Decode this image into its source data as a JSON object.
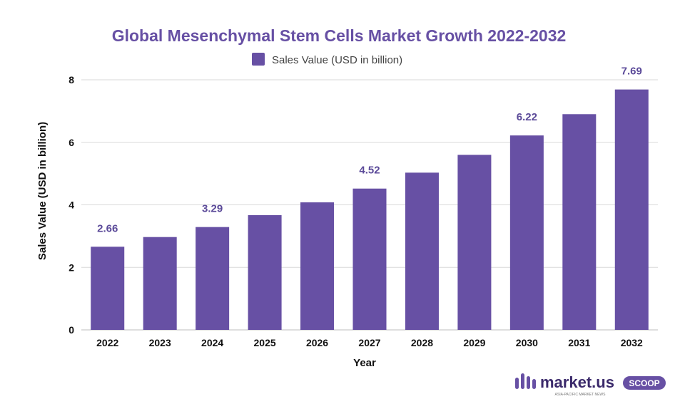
{
  "chart_data": {
    "type": "bar",
    "title": "Global Mesenchymal Stem Cells Market Growth 2022-2032",
    "xlabel": "Year",
    "ylabel": "Sales Value (USD in billion)",
    "categories": [
      "2022",
      "2023",
      "2024",
      "2025",
      "2026",
      "2027",
      "2028",
      "2029",
      "2030",
      "2031",
      "2032"
    ],
    "series": [
      {
        "name": "Sales Value (USD in billion)",
        "values": [
          2.66,
          2.97,
          3.29,
          3.67,
          4.08,
          4.52,
          5.03,
          5.6,
          6.22,
          6.9,
          7.69
        ]
      }
    ],
    "data_labels": [
      {
        "category": "2022",
        "text": "2.66"
      },
      {
        "category": "2024",
        "text": "3.29"
      },
      {
        "category": "2027",
        "text": "4.52"
      },
      {
        "category": "2030",
        "text": "6.22"
      },
      {
        "category": "2032",
        "text": "7.69"
      }
    ],
    "yticks": [
      "0",
      "2",
      "4",
      "6",
      "8"
    ],
    "ylim": [
      0,
      8
    ],
    "legend_position": "top-center",
    "grid": "horizontal",
    "colors": {
      "bar": "#6750a4",
      "title": "#6750a4",
      "data_label": "#5b4a99",
      "grid": "#d9d9d9"
    }
  },
  "branding": {
    "logo_text": "market.us",
    "badge_text": "SCOOP",
    "tagline": "ASIA-PACIFIC MARKET NEWS"
  }
}
